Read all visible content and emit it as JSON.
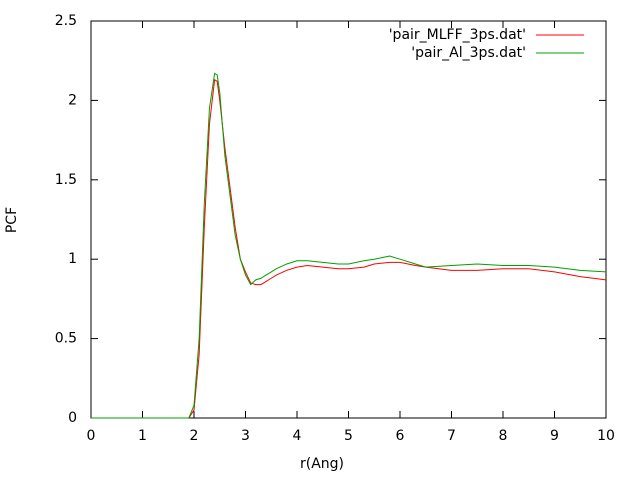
{
  "chart_data": {
    "type": "line",
    "x_label": "r(Ang)",
    "y_label": "PCF",
    "x": [
      0,
      1,
      1.9,
      2.0,
      2.1,
      2.2,
      2.3,
      2.4,
      2.45,
      2.5,
      2.6,
      2.7,
      2.8,
      2.9,
      3.0,
      3.1,
      3.2,
      3.3,
      3.4,
      3.5,
      3.6,
      3.8,
      4.0,
      4.2,
      4.5,
      4.8,
      5.0,
      5.3,
      5.5,
      5.8,
      6.0,
      6.3,
      6.5,
      7.0,
      7.5,
      8.0,
      8.5,
      9.0,
      9.5,
      10
    ],
    "series": [
      {
        "name": "'pair_MLFF_3ps.dat'",
        "color": "#ff0000",
        "values": [
          0,
          0,
          0,
          0.05,
          0.4,
          1.2,
          1.85,
          2.13,
          2.12,
          2.0,
          1.7,
          1.45,
          1.2,
          1.0,
          0.92,
          0.85,
          0.84,
          0.84,
          0.86,
          0.88,
          0.9,
          0.93,
          0.95,
          0.96,
          0.95,
          0.94,
          0.94,
          0.95,
          0.97,
          0.98,
          0.98,
          0.96,
          0.95,
          0.93,
          0.93,
          0.94,
          0.94,
          0.92,
          0.89,
          0.87
        ]
      },
      {
        "name": "'pair_Al_3ps.dat'",
        "color": "#00a000",
        "values": [
          0,
          0,
          0,
          0.08,
          0.5,
          1.35,
          1.95,
          2.17,
          2.16,
          2.05,
          1.65,
          1.4,
          1.15,
          1.0,
          0.9,
          0.84,
          0.87,
          0.88,
          0.9,
          0.92,
          0.94,
          0.97,
          0.99,
          0.99,
          0.98,
          0.97,
          0.97,
          0.99,
          1.0,
          1.02,
          1.0,
          0.97,
          0.95,
          0.96,
          0.97,
          0.96,
          0.96,
          0.95,
          0.93,
          0.92
        ]
      }
    ],
    "xlim": [
      0,
      10
    ],
    "xticks": [
      0,
      1,
      2,
      3,
      4,
      5,
      6,
      7,
      8,
      9,
      10
    ],
    "ylim": [
      0,
      2.5
    ],
    "yticks": [
      0,
      0.5,
      1,
      1.5,
      2,
      2.5
    ],
    "grid": false,
    "legend": "top-right"
  }
}
